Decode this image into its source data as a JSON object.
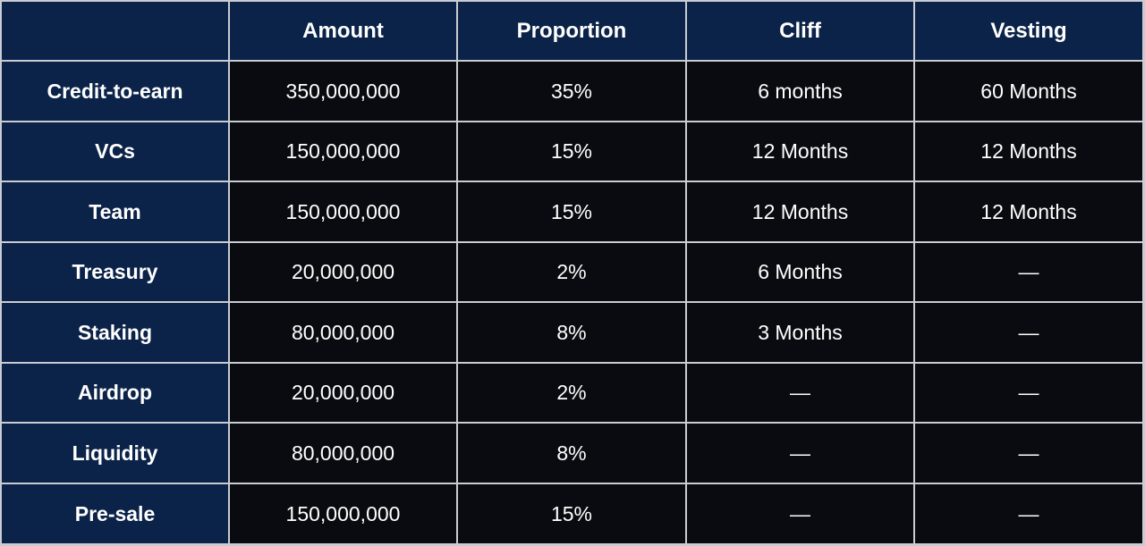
{
  "table": {
    "header": [
      "Amount",
      "Proportion",
      "Cliff",
      "Vesting"
    ],
    "rows": [
      [
        "Credit-to-earn",
        "350,000,000",
        "35%",
        "6 months",
        "60 Months"
      ],
      [
        "VCs",
        "150,000,000",
        "15%",
        "12 Months",
        "12 Months"
      ],
      [
        "Team",
        "150,000,000",
        "15%",
        "12 Months",
        "12 Months"
      ],
      [
        "Treasury",
        "20,000,000",
        "2%",
        "6 Months",
        "—"
      ],
      [
        "Staking",
        "80,000,000",
        "8%",
        "3 Months",
        "—"
      ],
      [
        "Airdrop",
        "20,000,000",
        "2%",
        "—",
        "—"
      ],
      [
        "Liquidity",
        "80,000,000",
        "8%",
        "—",
        "—"
      ],
      [
        "Pre-sale",
        "150,000,000",
        "15%",
        "—",
        "—"
      ]
    ]
  }
}
